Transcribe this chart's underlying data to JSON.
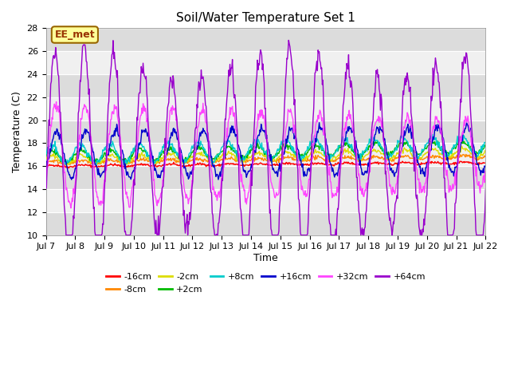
{
  "title": "Soil/Water Temperature Set 1",
  "xlabel": "Time",
  "ylabel": "Temperature (C)",
  "ylim": [
    10,
    28
  ],
  "xlim": [
    0,
    15
  ],
  "yticks": [
    10,
    12,
    14,
    16,
    18,
    20,
    22,
    24,
    26,
    28
  ],
  "xtick_labels": [
    "Jul 7",
    "Jul 8",
    "Jul 9",
    "Jul 10",
    "Jul 11",
    "Jul 12",
    "Jul 13",
    "Jul 14",
    "Jul 15",
    "Jul 16",
    "Jul 17",
    "Jul 18",
    "Jul 19",
    "Jul 20",
    "Jul 21",
    "Jul 22"
  ],
  "annotation_text": "EE_met",
  "annotation_bg": "#ffff99",
  "annotation_border": "#996600",
  "series_colors": {
    "-16cm": "#ff0000",
    "-8cm": "#ff8800",
    "-2cm": "#dddd00",
    "+2cm": "#00bb00",
    "+8cm": "#00cccc",
    "+16cm": "#0000cc",
    "+32cm": "#ff44ff",
    "+64cm": "#9900cc"
  },
  "bg_light": "#f0f0f0",
  "bg_dark": "#e0e0e0",
  "stripe_light": "#f5f5f5",
  "stripe_dark": "#dcdcdc"
}
